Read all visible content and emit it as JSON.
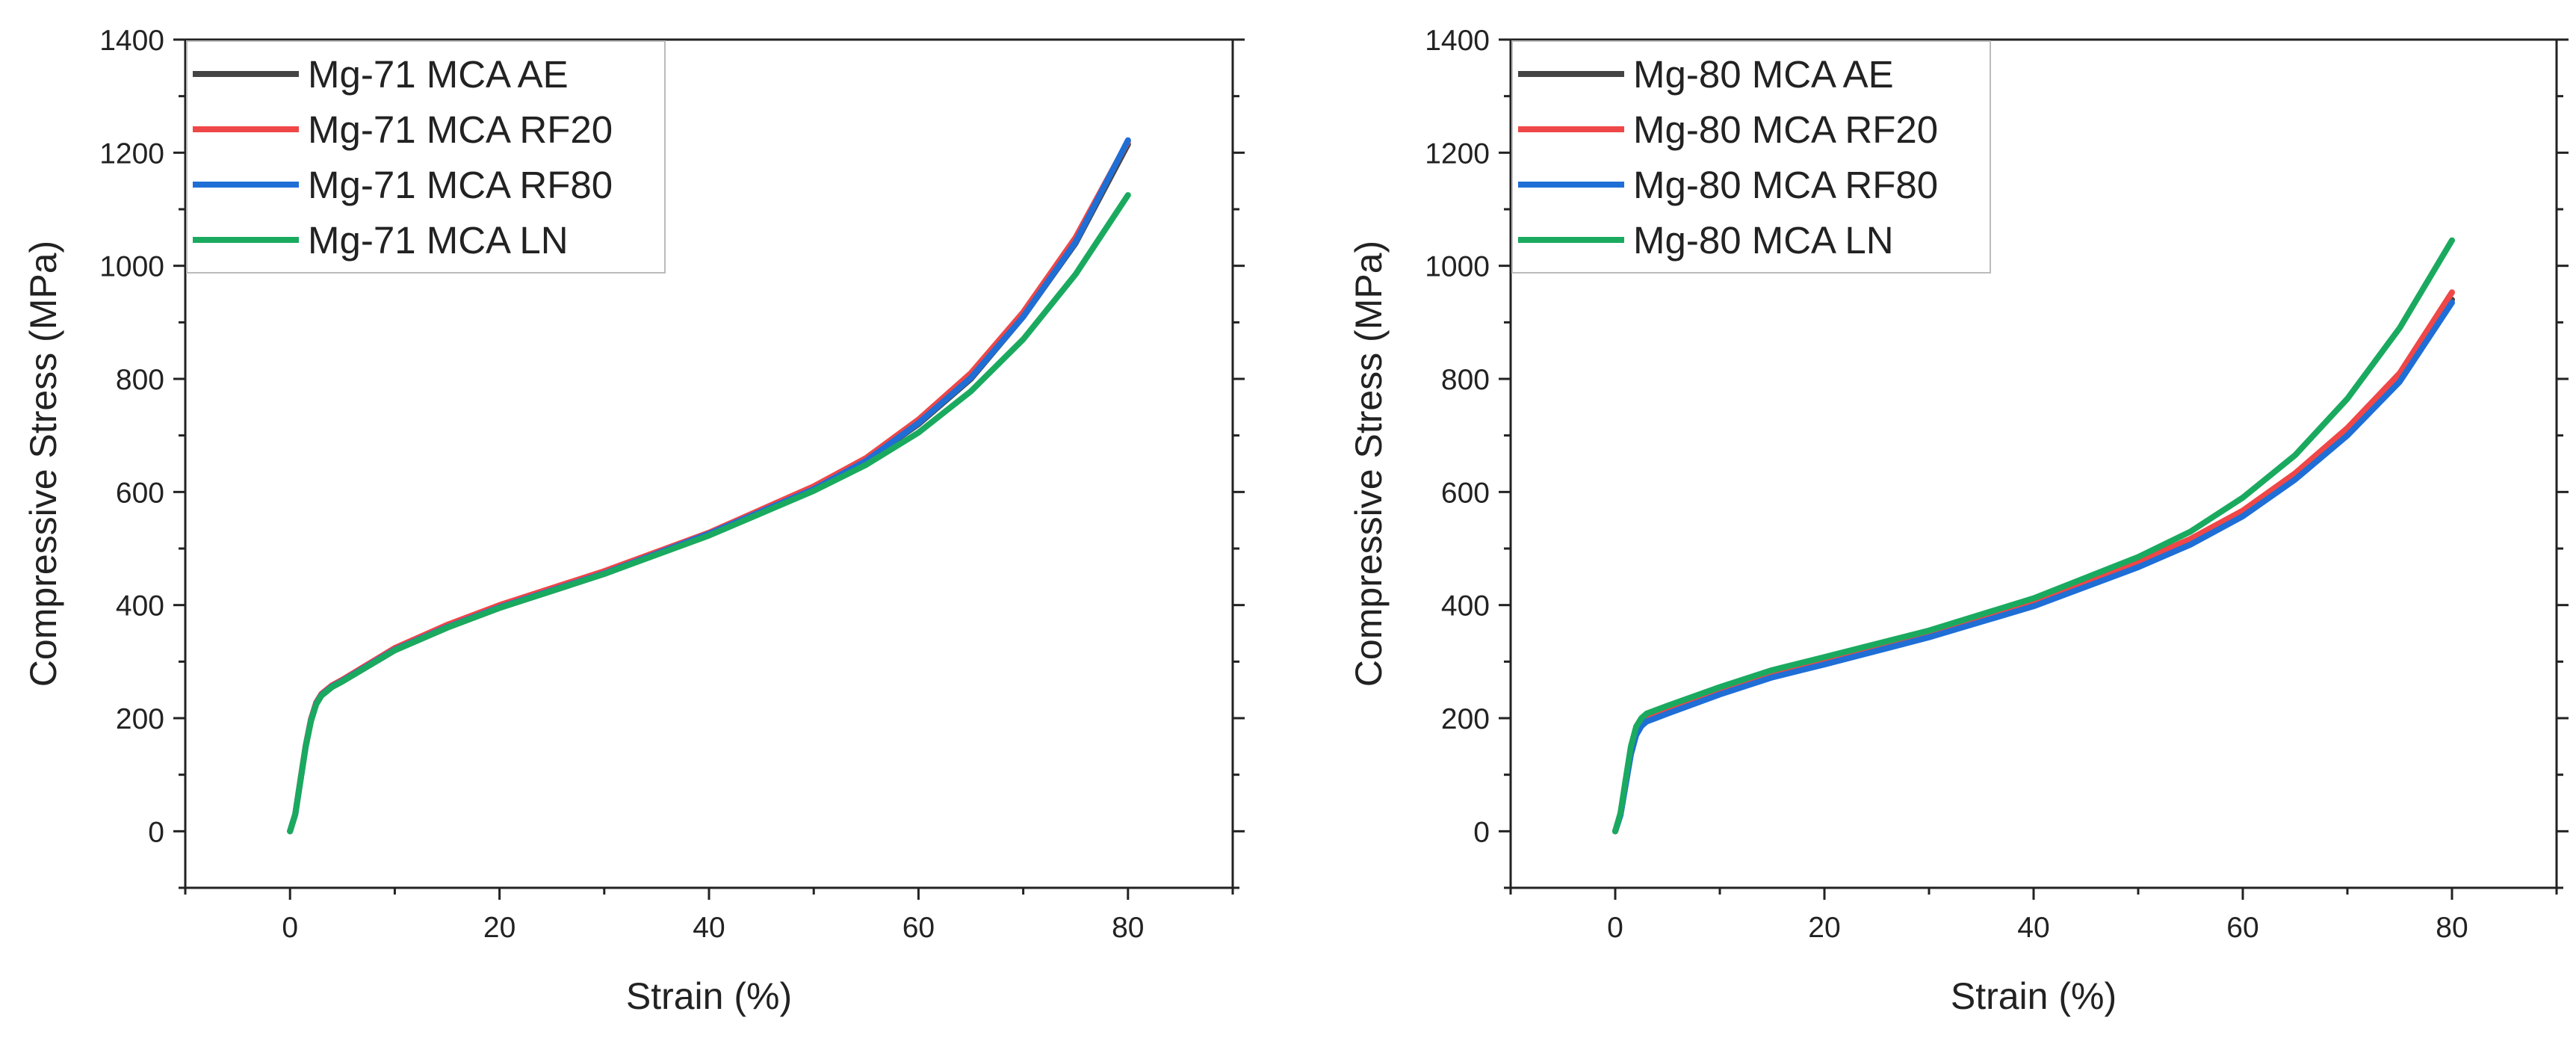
{
  "chart_data": [
    {
      "type": "line",
      "title": "",
      "xlabel": "Strain (%)",
      "ylabel": "Compressive Stress (MPa)",
      "xlim": [
        -10,
        90
      ],
      "ylim": [
        -100,
        1400
      ],
      "xticks": [
        0,
        20,
        40,
        60,
        80
      ],
      "yticks": [
        0,
        200,
        400,
        600,
        800,
        1000,
        1200,
        1400
      ],
      "legend": "top-left",
      "grid": false,
      "series": [
        {
          "name": "Mg-71 MCA AE",
          "color": "#444444",
          "x": [
            0,
            0.5,
            1,
            1.5,
            2,
            2.5,
            3,
            4,
            5,
            10,
            15,
            20,
            30,
            40,
            50,
            55,
            60,
            65,
            70,
            75,
            80
          ],
          "y": [
            0,
            30,
            90,
            150,
            195,
            225,
            240,
            255,
            265,
            320,
            360,
            395,
            455,
            525,
            605,
            655,
            720,
            800,
            910,
            1040,
            1215
          ]
        },
        {
          "name": "Mg-71 MCA RF20",
          "color": "#ef4747",
          "x": [
            0,
            0.5,
            1,
            1.5,
            2,
            2.5,
            3,
            4,
            5,
            10,
            15,
            20,
            30,
            40,
            50,
            55,
            60,
            65,
            70,
            75,
            80
          ],
          "y": [
            0,
            30,
            92,
            152,
            198,
            228,
            243,
            258,
            268,
            324,
            365,
            400,
            460,
            528,
            610,
            660,
            728,
            810,
            918,
            1050,
            1220
          ]
        },
        {
          "name": "Mg-71 MCA RF80",
          "color": "#1f6ed6",
          "x": [
            0,
            0.5,
            1,
            1.5,
            2,
            2.5,
            3,
            4,
            5,
            10,
            15,
            20,
            30,
            40,
            50,
            55,
            60,
            65,
            70,
            75,
            80
          ],
          "y": [
            0,
            30,
            90,
            150,
            196,
            226,
            241,
            256,
            266,
            321,
            361,
            396,
            456,
            526,
            605,
            655,
            722,
            802,
            910,
            1042,
            1222
          ]
        },
        {
          "name": "Mg-71 MCA LN",
          "color": "#1aaa5f",
          "x": [
            0,
            0.5,
            1,
            1.5,
            2,
            2.5,
            3,
            4,
            5,
            10,
            15,
            20,
            30,
            40,
            50,
            55,
            60,
            65,
            70,
            75,
            80
          ],
          "y": [
            0,
            30,
            90,
            150,
            195,
            225,
            240,
            255,
            265,
            320,
            360,
            395,
            455,
            523,
            602,
            648,
            705,
            778,
            870,
            985,
            1125
          ]
        }
      ]
    },
    {
      "type": "line",
      "title": "",
      "xlabel": "Strain (%)",
      "ylabel": "Compressive Stress (MPa)",
      "xlim": [
        -10,
        90
      ],
      "ylim": [
        -100,
        1400
      ],
      "xticks": [
        0,
        20,
        40,
        60,
        80
      ],
      "yticks": [
        0,
        200,
        400,
        600,
        800,
        1000,
        1200,
        1400
      ],
      "legend": "top-left",
      "grid": false,
      "series": [
        {
          "name": "Mg-80 MCA AE",
          "color": "#444444",
          "x": [
            0,
            0.5,
            1,
            1.5,
            2,
            2.5,
            3,
            4,
            5,
            10,
            15,
            20,
            30,
            40,
            50,
            55,
            60,
            65,
            70,
            75,
            80
          ],
          "y": [
            0,
            30,
            85,
            140,
            175,
            190,
            198,
            205,
            212,
            245,
            275,
            298,
            345,
            400,
            470,
            510,
            560,
            625,
            705,
            800,
            940
          ]
        },
        {
          "name": "Mg-80 MCA RF20",
          "color": "#ef4747",
          "x": [
            0,
            0.5,
            1,
            1.5,
            2,
            2.5,
            3,
            4,
            5,
            10,
            15,
            20,
            30,
            40,
            50,
            55,
            60,
            65,
            70,
            75,
            80
          ],
          "y": [
            0,
            30,
            88,
            143,
            178,
            194,
            202,
            210,
            217,
            250,
            280,
            303,
            350,
            406,
            476,
            517,
            567,
            633,
            713,
            810,
            953
          ]
        },
        {
          "name": "Mg-80 MCA RF80",
          "color": "#1f6ed6",
          "x": [
            0,
            0.5,
            1,
            1.5,
            2,
            2.5,
            3,
            4,
            5,
            10,
            15,
            20,
            30,
            40,
            50,
            55,
            60,
            65,
            70,
            75,
            80
          ],
          "y": [
            0,
            28,
            82,
            136,
            170,
            186,
            194,
            201,
            208,
            242,
            272,
            295,
            343,
            398,
            467,
            507,
            557,
            622,
            700,
            795,
            935
          ]
        },
        {
          "name": "Mg-80 MCA LN",
          "color": "#1aaa5f",
          "x": [
            0,
            0.5,
            1,
            1.5,
            2,
            2.5,
            3,
            4,
            5,
            10,
            15,
            20,
            30,
            40,
            50,
            55,
            60,
            65,
            70,
            75,
            80
          ],
          "y": [
            0,
            32,
            92,
            150,
            185,
            200,
            208,
            215,
            222,
            255,
            285,
            308,
            355,
            412,
            485,
            530,
            590,
            665,
            765,
            890,
            1045
          ]
        }
      ]
    }
  ]
}
